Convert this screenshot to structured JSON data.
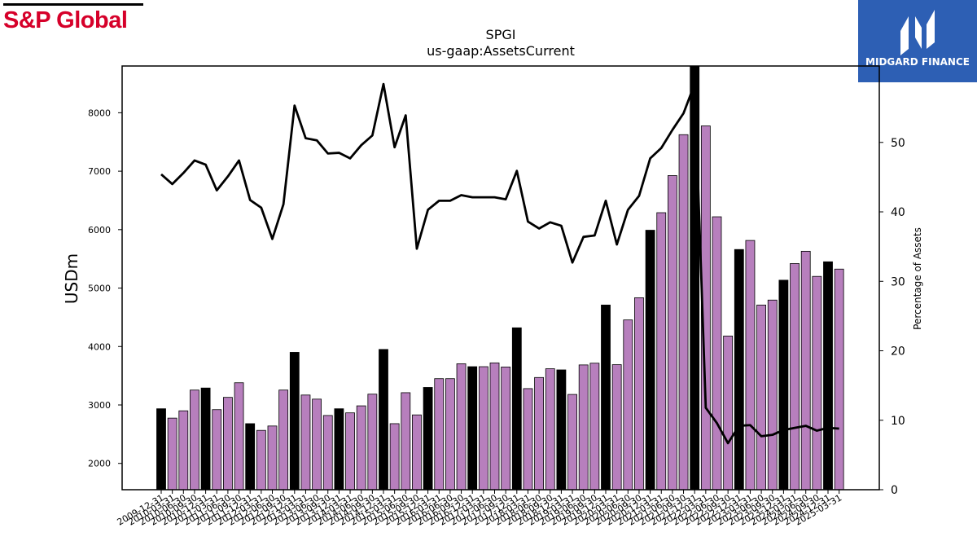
{
  "branding": {
    "left_logo_text": "S&P Global",
    "left_logo_color": "#d6002a",
    "right_logo_text": "MIDGARD FINANCE",
    "right_logo_bg": "#2d5fb4"
  },
  "chart_data": {
    "type": "bar",
    "title": "SPGI",
    "subtitle": "us-gaap:AssetsCurrent",
    "ylabel": "USDm",
    "y2label": "Percentage of Assets",
    "ylim": [
      1550,
      8800
    ],
    "y2lim": [
      0,
      61
    ],
    "yticks": [
      2000,
      3000,
      4000,
      5000,
      6000,
      7000,
      8000
    ],
    "y2ticks": [
      0,
      10,
      20,
      30,
      40,
      50
    ],
    "bar_colors": {
      "annual": "#000000",
      "quarterly": "#b77fbd"
    },
    "line_color": "#000000",
    "categories": [
      "2009-12-31",
      "2010-03-31",
      "2010-06-30",
      "2010-09-30",
      "2010-12-31",
      "2011-03-31",
      "2011-06-30",
      "2011-09-30",
      "2011-12-31",
      "2012-03-31",
      "2012-06-30",
      "2012-09-30",
      "2012-12-31",
      "2013-03-31",
      "2013-06-30",
      "2013-09-30",
      "2013-12-31",
      "2014-03-31",
      "2014-06-30",
      "2014-09-30",
      "2014-12-31",
      "2015-03-31",
      "2015-06-30",
      "2015-09-30",
      "2015-12-31",
      "2016-03-31",
      "2016-06-30",
      "2016-09-30",
      "2016-12-31",
      "2017-03-31",
      "2017-06-30",
      "2017-09-30",
      "2017-12-31",
      "2018-03-31",
      "2018-06-30",
      "2018-09-30",
      "2018-12-31",
      "2019-03-31",
      "2019-06-30",
      "2019-09-30",
      "2019-12-31",
      "2020-03-31",
      "2020-06-30",
      "2020-09-30",
      "2020-12-31",
      "2021-03-31",
      "2021-06-30",
      "2021-09-30",
      "2021-12-31",
      "2022-03-31",
      "2022-06-30",
      "2022-09-30",
      "2022-12-31",
      "2023-03-31",
      "2023-06-30",
      "2023-09-30",
      "2023-12-31",
      "2024-03-31",
      "2024-06-30",
      "2024-09-30",
      "2024-12-31",
      "2025-03-31"
    ],
    "period_type": [
      "annual",
      "quarterly",
      "quarterly",
      "quarterly",
      "annual",
      "quarterly",
      "quarterly",
      "quarterly",
      "annual",
      "quarterly",
      "quarterly",
      "quarterly",
      "annual",
      "quarterly",
      "quarterly",
      "quarterly",
      "annual",
      "quarterly",
      "quarterly",
      "quarterly",
      "annual",
      "quarterly",
      "quarterly",
      "quarterly",
      "annual",
      "quarterly",
      "quarterly",
      "quarterly",
      "annual",
      "quarterly",
      "quarterly",
      "quarterly",
      "annual",
      "quarterly",
      "quarterly",
      "quarterly",
      "annual",
      "quarterly",
      "quarterly",
      "quarterly",
      "annual",
      "quarterly",
      "quarterly",
      "quarterly",
      "annual",
      "quarterly",
      "quarterly",
      "quarterly",
      "annual",
      "quarterly",
      "quarterly",
      "quarterly",
      "annual",
      "quarterly",
      "quarterly",
      "quarterly",
      "annual",
      "quarterly",
      "quarterly",
      "quarterly",
      "annual",
      "quarterly"
    ],
    "series": [
      {
        "name": "AssetsCurrent",
        "kind": "bar",
        "axis": "left",
        "values": [
          2935,
          2775,
          2900,
          3255,
          3290,
          2920,
          3130,
          3380,
          2680,
          2565,
          2640,
          3255,
          3900,
          3170,
          3100,
          2820,
          2935,
          2865,
          2985,
          3185,
          3950,
          2680,
          3210,
          2830,
          3300,
          3450,
          3450,
          3705,
          3655,
          3655,
          3720,
          3650,
          4320,
          3280,
          3470,
          3620,
          3600,
          3180,
          3685,
          3715,
          4710,
          3690,
          4455,
          4835,
          5990,
          6290,
          6925,
          7625,
          8825,
          7775,
          6220,
          4180,
          5660,
          5815,
          4710,
          4795,
          5135,
          5420,
          5630,
          5200,
          5450,
          5325
        ]
      },
      {
        "name": "Percentage of Assets",
        "kind": "line",
        "axis": "right",
        "values": [
          45.4,
          44.0,
          45.6,
          47.4,
          46.8,
          43.1,
          45.1,
          47.4,
          41.7,
          40.6,
          36.1,
          41.1,
          55.3,
          50.6,
          50.3,
          48.4,
          48.5,
          47.7,
          49.6,
          51.0,
          58.4,
          49.3,
          53.9,
          34.7,
          40.3,
          41.6,
          41.6,
          42.4,
          42.1,
          42.1,
          42.1,
          41.8,
          45.9,
          38.6,
          37.6,
          38.5,
          38.0,
          32.7,
          36.4,
          36.6,
          41.6,
          35.3,
          40.3,
          42.3,
          47.7,
          49.2,
          51.8,
          54.2,
          58.4,
          11.8,
          9.6,
          6.7,
          9.2,
          9.3,
          7.7,
          7.9,
          8.6,
          8.9,
          9.2,
          8.5,
          8.9,
          8.8
        ]
      }
    ]
  }
}
